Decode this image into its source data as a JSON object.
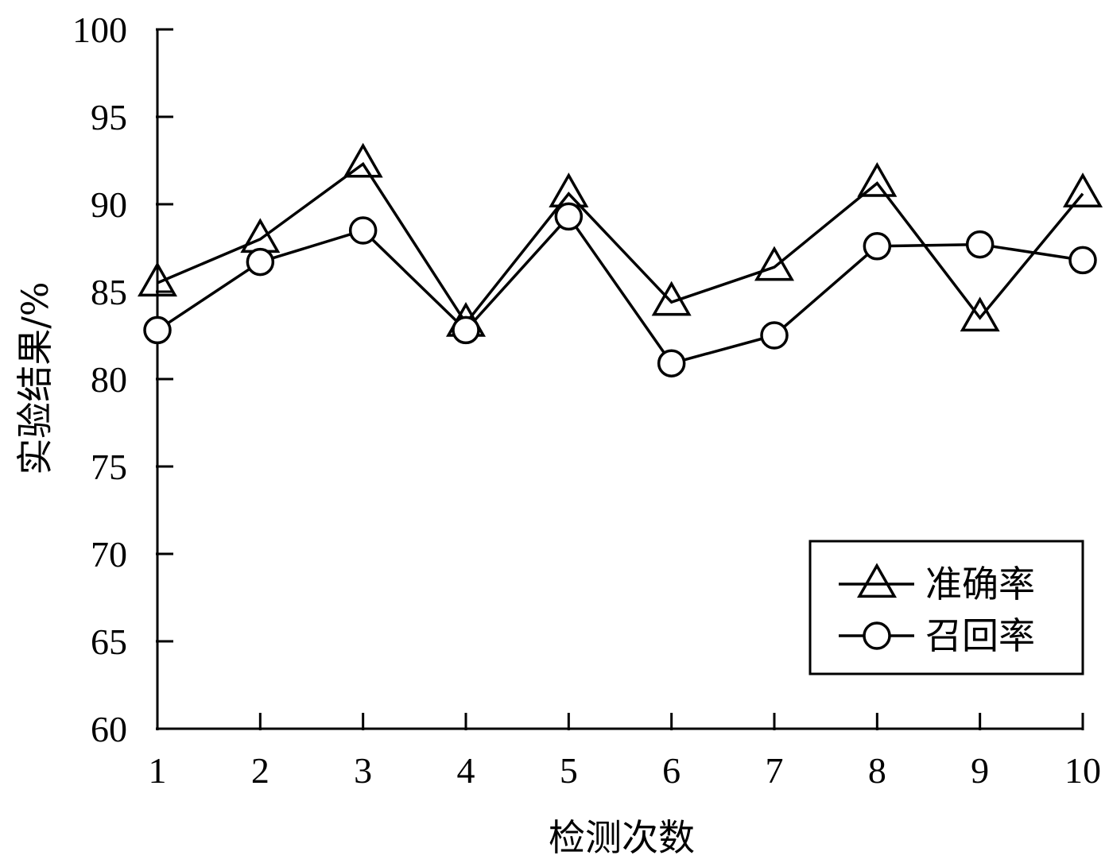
{
  "chart_data": {
    "type": "line",
    "title": "",
    "xlabel": "检测次数",
    "ylabel": "实验结果/%",
    "x": [
      1,
      2,
      3,
      4,
      5,
      6,
      7,
      8,
      9,
      10
    ],
    "x_tick_labels": [
      "1",
      "2",
      "3",
      "4",
      "5",
      "6",
      "7",
      "8",
      "9",
      "10"
    ],
    "y_tick_labels": [
      "60",
      "65",
      "70",
      "75",
      "80",
      "85",
      "90",
      "95",
      "100"
    ],
    "ylim": [
      60,
      100
    ],
    "yticks": [
      60,
      65,
      70,
      75,
      80,
      85,
      90,
      95,
      100
    ],
    "grid": false,
    "legend_position": "bottom-right",
    "series": [
      {
        "name": "准确率",
        "marker": "triangle",
        "color": "#000000",
        "values": [
          85.5,
          88.0,
          92.3,
          83.2,
          90.6,
          84.4,
          86.4,
          91.2,
          83.5,
          90.6
        ]
      },
      {
        "name": "召回率",
        "marker": "circle",
        "color": "#000000",
        "values": [
          82.8,
          86.7,
          88.5,
          82.8,
          89.3,
          80.9,
          82.5,
          87.6,
          87.7,
          86.8
        ]
      }
    ]
  }
}
